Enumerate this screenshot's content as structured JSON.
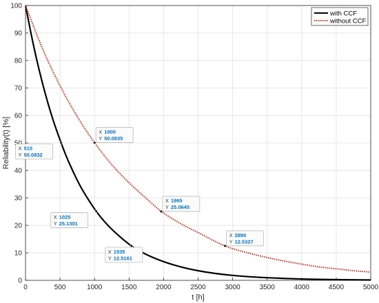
{
  "chart_data": {
    "type": "line",
    "title": "",
    "xlabel": "t [h]",
    "ylabel": "Reliability(t) [%]",
    "xlim": [
      0,
      5000
    ],
    "ylim": [
      0,
      100
    ],
    "xticks": [
      0,
      500,
      1000,
      1500,
      2000,
      2500,
      3000,
      3500,
      4000,
      4500,
      5000
    ],
    "yticks": [
      0,
      10,
      20,
      30,
      40,
      50,
      60,
      70,
      80,
      90,
      100
    ],
    "grid": true,
    "legend_position": "top-right",
    "series": [
      {
        "name": "with CCF",
        "color": "#000000",
        "style": "solid",
        "x": [
          0,
          100,
          200,
          300,
          400,
          515,
          600,
          700,
          800,
          900,
          1025,
          1150,
          1300,
          1535,
          1750,
          2000,
          2250,
          2500,
          2750,
          3000,
          3250,
          3500,
          3750,
          4000,
          4250,
          4500,
          4750,
          5000
        ],
        "y": [
          100,
          87.4,
          76.3,
          66.7,
          58.3,
          50.1,
          44.6,
          39.0,
          34.0,
          29.8,
          25.1,
          21.2,
          17.4,
          12.5,
          9.4,
          6.8,
          4.9,
          3.5,
          2.5,
          1.8,
          1.3,
          0.95,
          0.68,
          0.49,
          0.35,
          0.25,
          0.18,
          0.13
        ]
      },
      {
        "name": "without CCF",
        "color": "#C0392B",
        "style": "dotted",
        "x": [
          0,
          250,
          500,
          750,
          1000,
          1250,
          1500,
          1750,
          1965,
          2250,
          2500,
          2890,
          3250,
          3500,
          3750,
          4000,
          4250,
          4500,
          4750,
          5000
        ],
        "y": [
          100,
          84.1,
          70.8,
          59.6,
          50.1,
          42.1,
          35.5,
          29.8,
          25.1,
          20.6,
          17.4,
          12.5,
          9.8,
          8.3,
          7.0,
          5.9,
          4.9,
          4.2,
          3.5,
          3.0
        ]
      }
    ],
    "annotations": [
      {
        "series": "with CCF",
        "x_label": "X",
        "y_label": "Y",
        "x": 515,
        "y": 50.0832,
        "x_text": "515",
        "y_text": "50.0832"
      },
      {
        "series": "with CCF",
        "x_label": "X",
        "y_label": "Y",
        "x": 1025,
        "y": 25.1301,
        "x_text": "1025",
        "y_text": "25.1301"
      },
      {
        "series": "with CCF",
        "x_label": "X",
        "y_label": "Y",
        "x": 1535,
        "y": 12.5161,
        "x_text": "1535",
        "y_text": "12.5161"
      },
      {
        "series": "without CCF",
        "x_label": "X",
        "y_label": "Y",
        "x": 1000,
        "y": 50.0935,
        "x_text": "1000",
        "y_text": "50.0935"
      },
      {
        "series": "without CCF",
        "x_label": "X",
        "y_label": "Y",
        "x": 1965,
        "y": 25.0645,
        "x_text": "1965",
        "y_text": "25.0645"
      },
      {
        "series": "without CCF",
        "x_label": "X",
        "y_label": "Y",
        "x": 2890,
        "y": 12.5327,
        "x_text": "2890",
        "y_text": "12.5327"
      }
    ]
  }
}
